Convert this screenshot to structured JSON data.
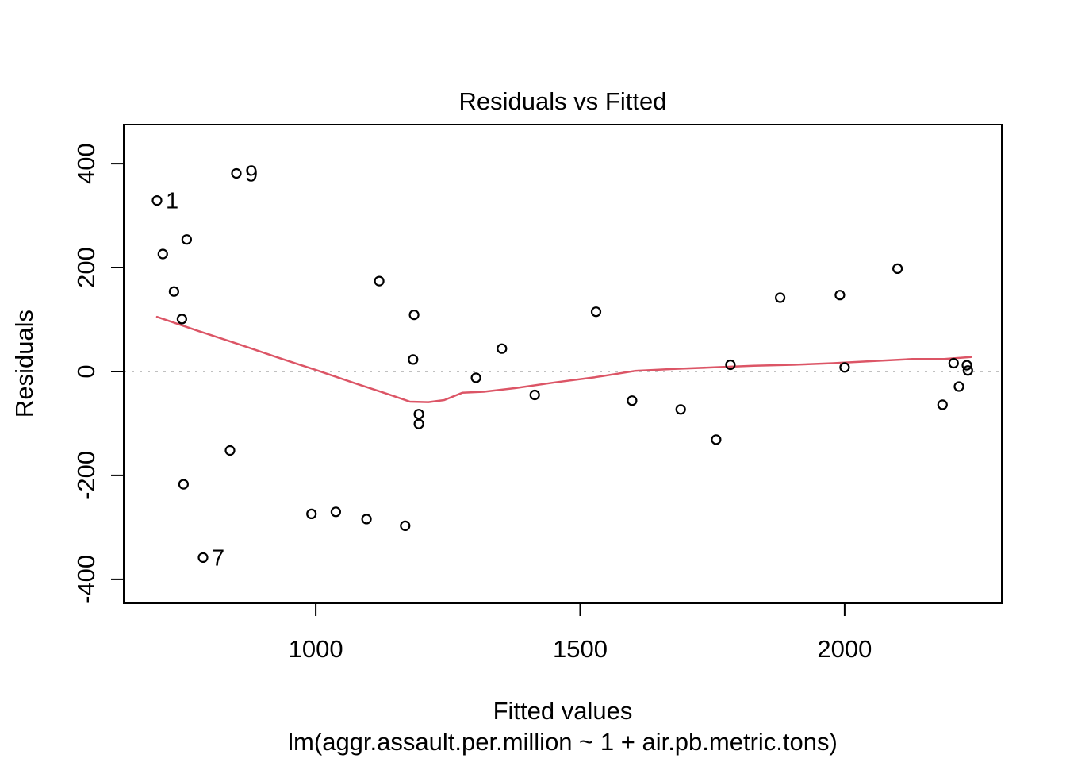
{
  "chart_data": {
    "type": "scatter",
    "title": "Residuals vs Fitted",
    "xlabel": "Fitted values",
    "ylabel": "Residuals",
    "caption": "lm(aggr.assault.per.million ~ 1 + air.pb.metric.tons)",
    "xlim": [
      637,
      2297
    ],
    "ylim": [
      -446,
      475
    ],
    "x_ticks": [
      1000,
      1500,
      2000
    ],
    "y_ticks": [
      -400,
      -200,
      0,
      200,
      400
    ],
    "grid": false,
    "legend": null,
    "zero_line_y": 0,
    "colors": {
      "point": "#000000",
      "smoother": "#dc5566",
      "zero_line": "#c0c0c0",
      "axis": "#000000"
    },
    "points": [
      {
        "x": 700,
        "y": 329,
        "label": "1"
      },
      {
        "x": 711,
        "y": 226
      },
      {
        "x": 732,
        "y": 154
      },
      {
        "x": 747,
        "y": 101
      },
      {
        "x": 756,
        "y": 254
      },
      {
        "x": 750,
        "y": -217
      },
      {
        "x": 787,
        "y": -358,
        "label": "7"
      },
      {
        "x": 838,
        "y": -152
      },
      {
        "x": 850,
        "y": 381,
        "label": "9"
      },
      {
        "x": 992,
        "y": -274
      },
      {
        "x": 1038,
        "y": -270
      },
      {
        "x": 1096,
        "y": -284
      },
      {
        "x": 1120,
        "y": 174
      },
      {
        "x": 1169,
        "y": -297
      },
      {
        "x": 1184,
        "y": 23
      },
      {
        "x": 1186,
        "y": 109
      },
      {
        "x": 1195,
        "y": -82
      },
      {
        "x": 1195,
        "y": -101
      },
      {
        "x": 1303,
        "y": -12
      },
      {
        "x": 1352,
        "y": 44
      },
      {
        "x": 1414,
        "y": -45
      },
      {
        "x": 1530,
        "y": 115
      },
      {
        "x": 1598,
        "y": -56
      },
      {
        "x": 1690,
        "y": -73
      },
      {
        "x": 1757,
        "y": -131
      },
      {
        "x": 1784,
        "y": 13
      },
      {
        "x": 1878,
        "y": 142
      },
      {
        "x": 1991,
        "y": 147
      },
      {
        "x": 2000,
        "y": 8
      },
      {
        "x": 2100,
        "y": 198
      },
      {
        "x": 2185,
        "y": -64
      },
      {
        "x": 2206,
        "y": 16
      },
      {
        "x": 2216,
        "y": -29
      },
      {
        "x": 2231,
        "y": 12
      },
      {
        "x": 2233,
        "y": 2
      }
    ],
    "smoother": {
      "name": "loess-smoother",
      "points": [
        [
          700,
          105
        ],
        [
          778,
          78
        ],
        [
          853,
          53
        ],
        [
          928,
          27
        ],
        [
          1003,
          2
        ],
        [
          1078,
          -24
        ],
        [
          1138,
          -44
        ],
        [
          1178,
          -58
        ],
        [
          1213,
          -59
        ],
        [
          1243,
          -55
        ],
        [
          1277,
          -41
        ],
        [
          1318,
          -39
        ],
        [
          1378,
          -32
        ],
        [
          1453,
          -21
        ],
        [
          1528,
          -11
        ],
        [
          1603,
          1
        ],
        [
          1678,
          5
        ],
        [
          1753,
          8
        ],
        [
          1828,
          11
        ],
        [
          1903,
          13
        ],
        [
          1978,
          16
        ],
        [
          2053,
          20
        ],
        [
          2128,
          24
        ],
        [
          2188,
          24
        ],
        [
          2239,
          28
        ]
      ]
    }
  }
}
